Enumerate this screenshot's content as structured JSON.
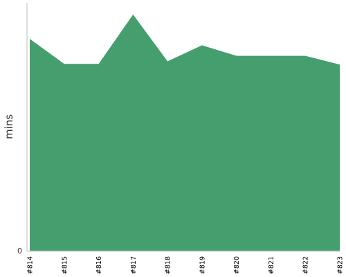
{
  "chart_data": {
    "type": "area",
    "title": "",
    "xlabel": "",
    "ylabel": "mins",
    "categories": [
      "#814",
      "#815",
      "#816",
      "#817",
      "#818",
      "#819",
      "#820",
      "#821",
      "#822",
      "#823"
    ],
    "series": [
      {
        "values": [
          89.7,
          79.1,
          79.1,
          100.0,
          80.2,
          87.0,
          82.5,
          82.5,
          82.5,
          78.8
        ],
        "color": "#449e6d"
      }
    ],
    "ylim": [
      0,
      100
    ],
    "y_ticks": [
      {
        "value": 0,
        "label": "0"
      }
    ],
    "grid": false,
    "legend": "none"
  }
}
